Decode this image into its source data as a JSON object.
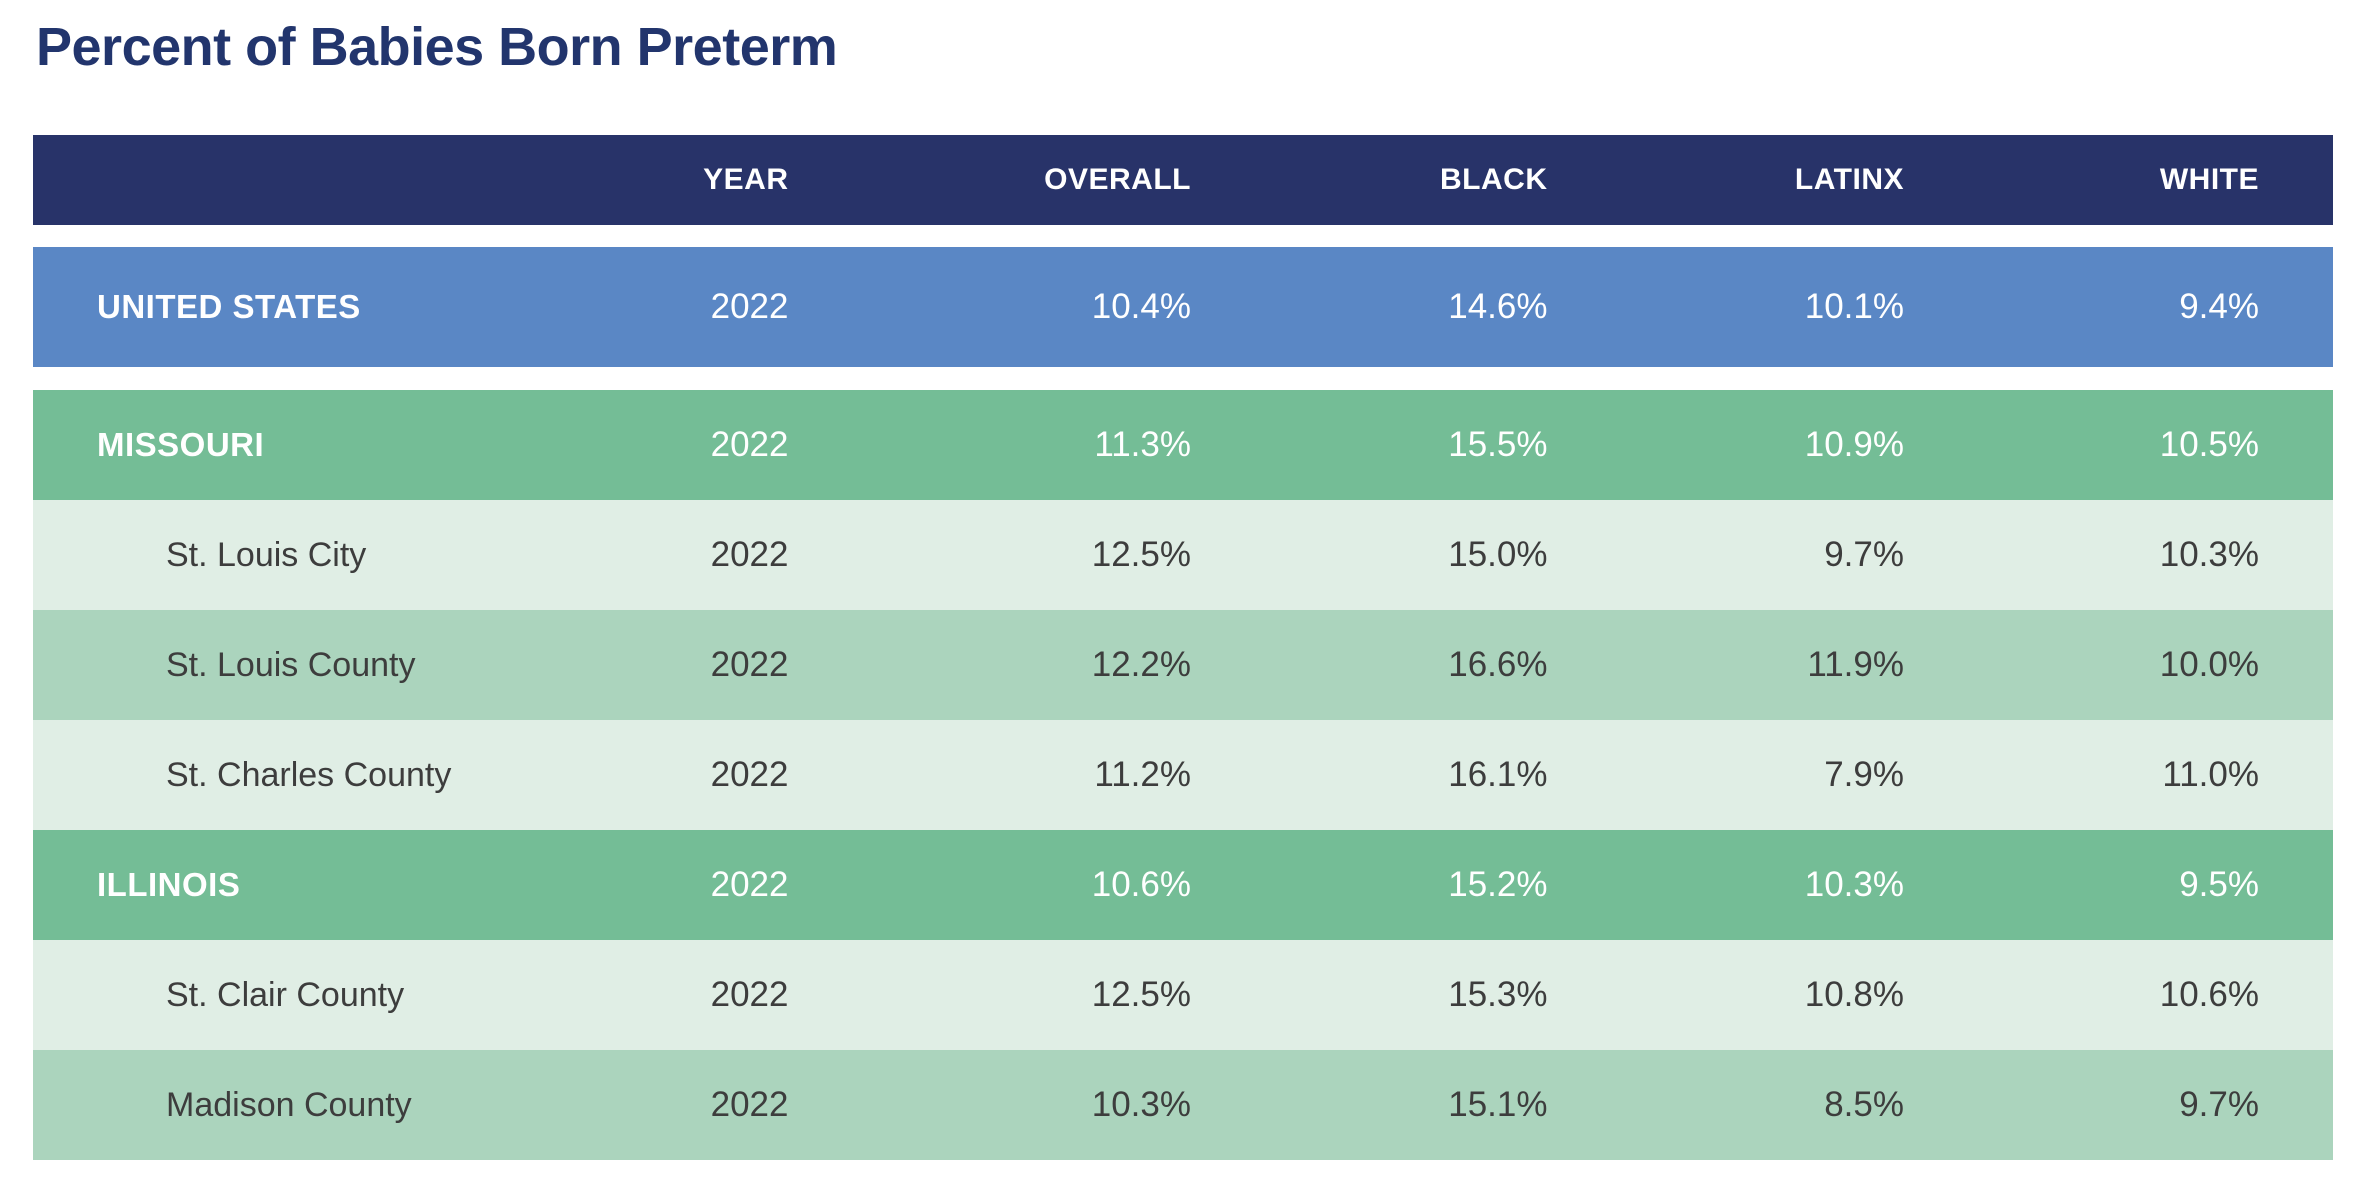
{
  "title": "Percent of Babies Born Preterm",
  "table": {
    "columns": {
      "label": "",
      "year": "YEAR",
      "overall": "OVERALL",
      "black": "BLACK",
      "latinx": "LATINX",
      "white": "WHITE"
    },
    "rows": [
      {
        "label": "UNITED STATES",
        "level": "country",
        "year": "2022",
        "overall": "10.4%",
        "black": "14.6%",
        "latinx": "10.1%",
        "white": "9.4%"
      },
      {
        "label": "MISSOURI",
        "level": "state",
        "year": "2022",
        "overall": "11.3%",
        "black": "15.5%",
        "latinx": "10.9%",
        "white": "10.5%"
      },
      {
        "label": "St. Louis City",
        "level": "county",
        "year": "2022",
        "overall": "12.5%",
        "black": "15.0%",
        "latinx": "9.7%",
        "white": "10.3%"
      },
      {
        "label": "St. Louis County",
        "level": "county",
        "year": "2022",
        "overall": "12.2%",
        "black": "16.6%",
        "latinx": "11.9%",
        "white": "10.0%"
      },
      {
        "label": "St. Charles County",
        "level": "county",
        "year": "2022",
        "overall": "11.2%",
        "black": "16.1%",
        "latinx": "7.9%",
        "white": "11.0%"
      },
      {
        "label": "ILLINOIS",
        "level": "state",
        "year": "2022",
        "overall": "10.6%",
        "black": "15.2%",
        "latinx": "10.3%",
        "white": "9.5%"
      },
      {
        "label": "St. Clair County",
        "level": "county",
        "year": "2022",
        "overall": "12.5%",
        "black": "15.3%",
        "latinx": "10.8%",
        "white": "10.6%"
      },
      {
        "label": "Madison County",
        "level": "county",
        "year": "2022",
        "overall": "10.3%",
        "black": "15.1%",
        "latinx": "8.5%",
        "white": "9.7%"
      }
    ],
    "colors": {
      "header_bg": "#283369",
      "country_bg": "#5a87c5",
      "state_bg": "#74bd96",
      "county_light_bg": "#e0eee5",
      "county_medium_bg": "#abd4bd",
      "title_text": "#22356d",
      "dark_text": "#3d3d3d"
    }
  }
}
